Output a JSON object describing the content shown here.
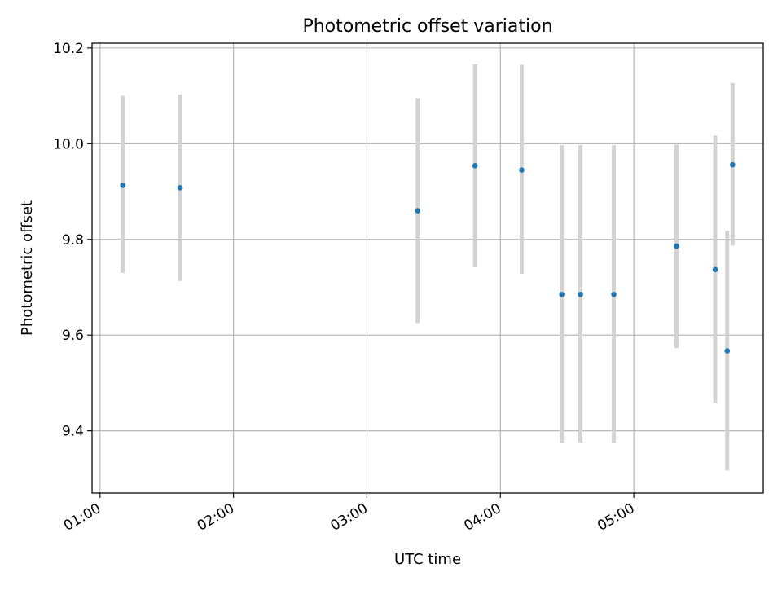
{
  "chart_data": {
    "type": "scatter",
    "title": "Photometric offset variation",
    "xlabel": "UTC time",
    "ylabel": "Photometric offset",
    "x_ticks": [
      "01:00",
      "02:00",
      "03:00",
      "04:00",
      "05:00"
    ],
    "x_tick_hours": [
      1,
      2,
      3,
      4,
      5
    ],
    "y_ticks": [
      "9.4",
      "9.6",
      "9.8",
      "10.0",
      "10.2"
    ],
    "y_tick_values": [
      9.4,
      9.6,
      9.8,
      10.0,
      10.2
    ],
    "xlim_hours": [
      0.94,
      5.97
    ],
    "ylim": [
      9.27,
      10.21
    ],
    "grid": true,
    "series": [
      {
        "points": [
          {
            "t": 1.17,
            "y": 9.913,
            "low": 9.73,
            "high": 10.1
          },
          {
            "t": 1.6,
            "y": 9.908,
            "low": 9.713,
            "high": 10.103
          },
          {
            "t": 3.38,
            "y": 9.86,
            "low": 9.625,
            "high": 10.095
          },
          {
            "t": 3.81,
            "y": 9.954,
            "low": 9.742,
            "high": 10.166
          },
          {
            "t": 4.16,
            "y": 9.945,
            "low": 9.728,
            "high": 10.165
          },
          {
            "t": 4.46,
            "y": 9.685,
            "low": 9.375,
            "high": 9.997
          },
          {
            "t": 4.6,
            "y": 9.685,
            "low": 9.375,
            "high": 9.997
          },
          {
            "t": 4.85,
            "y": 9.685,
            "low": 9.375,
            "high": 9.997
          },
          {
            "t": 5.32,
            "y": 9.786,
            "low": 9.573,
            "high": 9.998
          },
          {
            "t": 5.61,
            "y": 9.737,
            "low": 9.458,
            "high": 10.017
          },
          {
            "t": 5.7,
            "y": 9.567,
            "low": 9.317,
            "high": 9.818
          },
          {
            "t": 5.74,
            "y": 9.956,
            "low": 9.787,
            "high": 10.127
          }
        ]
      }
    ],
    "colors": {
      "point": "#1f77b4",
      "errorbar": "#d3d3d3",
      "grid": "#b0b0b0",
      "axes": "#000000"
    }
  }
}
